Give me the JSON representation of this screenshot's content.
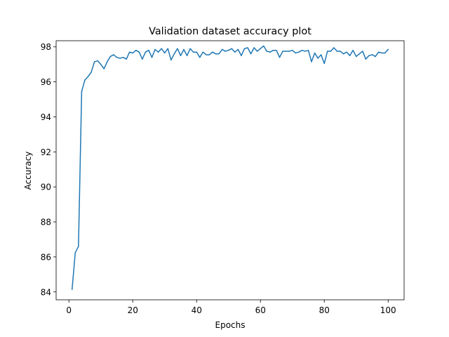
{
  "chart_data": {
    "type": "line",
    "title": "Validation dataset accuracy plot",
    "xlabel": "Epochs",
    "ylabel": "Accuracy",
    "xlim": [
      -4,
      105
    ],
    "ylim": [
      83.55,
      98.35
    ],
    "xticks": [
      0,
      20,
      40,
      60,
      80,
      100
    ],
    "yticks": [
      84,
      86,
      88,
      90,
      92,
      94,
      96,
      98
    ],
    "grid": false,
    "series": [
      {
        "color": "#1f77b4",
        "x": [
          1,
          2,
          3,
          4,
          5,
          6,
          7,
          8,
          9,
          10,
          11,
          12,
          13,
          14,
          15,
          16,
          17,
          18,
          19,
          20,
          21,
          22,
          23,
          24,
          25,
          26,
          27,
          28,
          29,
          30,
          31,
          32,
          33,
          34,
          35,
          36,
          37,
          38,
          39,
          40,
          41,
          42,
          43,
          44,
          45,
          46,
          47,
          48,
          49,
          50,
          51,
          52,
          53,
          54,
          55,
          56,
          57,
          58,
          59,
          60,
          61,
          62,
          63,
          64,
          65,
          66,
          67,
          68,
          69,
          70,
          71,
          72,
          73,
          74,
          75,
          76,
          77,
          78,
          79,
          80,
          81,
          82,
          83,
          84,
          85,
          86,
          87,
          88,
          89,
          90,
          91,
          92,
          93,
          94,
          95,
          96,
          97,
          98,
          99,
          100
        ],
        "y": [
          84.15,
          86.25,
          86.6,
          95.45,
          96.1,
          96.3,
          96.55,
          97.15,
          97.2,
          97.0,
          96.75,
          97.15,
          97.45,
          97.55,
          97.4,
          97.35,
          97.4,
          97.3,
          97.7,
          97.65,
          97.8,
          97.7,
          97.3,
          97.7,
          97.8,
          97.4,
          97.85,
          97.7,
          97.9,
          97.65,
          97.9,
          97.25,
          97.6,
          97.9,
          97.5,
          97.85,
          97.5,
          97.9,
          97.7,
          97.7,
          97.4,
          97.7,
          97.55,
          97.55,
          97.7,
          97.6,
          97.6,
          97.85,
          97.75,
          97.8,
          97.9,
          97.7,
          97.85,
          97.5,
          97.9,
          97.95,
          97.6,
          97.95,
          97.75,
          97.9,
          98.05,
          97.75,
          97.7,
          97.8,
          97.8,
          97.4,
          97.75,
          97.75,
          97.75,
          97.8,
          97.65,
          97.7,
          97.8,
          97.75,
          97.8,
          97.15,
          97.65,
          97.35,
          97.55,
          97.05,
          97.75,
          97.75,
          97.95,
          97.75,
          97.75,
          97.6,
          97.7,
          97.5,
          97.8,
          97.45,
          97.6,
          97.75,
          97.3,
          97.5,
          97.55,
          97.45,
          97.7,
          97.65,
          97.65,
          97.85
        ]
      }
    ]
  }
}
